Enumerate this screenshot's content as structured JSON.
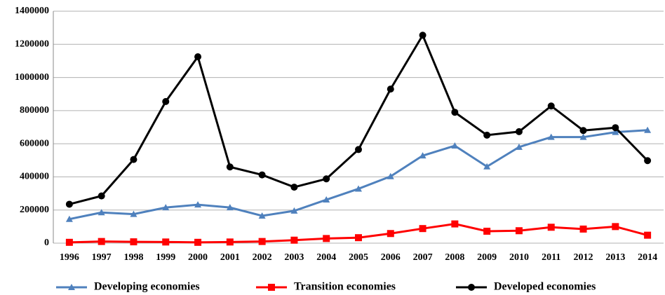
{
  "chart_data": {
    "type": "line",
    "categories": [
      "1996",
      "1997",
      "1998",
      "1999",
      "2000",
      "2001",
      "2002",
      "2003",
      "2004",
      "2005",
      "2006",
      "2007",
      "2008",
      "2009",
      "2010",
      "2011",
      "2012",
      "2013",
      "2014"
    ],
    "series": [
      {
        "name": "Developing economies",
        "color": "#4f81bd",
        "marker": "triangle",
        "values": [
          145000,
          185000,
          175000,
          215000,
          232000,
          215000,
          165000,
          195000,
          262000,
          328000,
          403000,
          528000,
          588000,
          462000,
          580000,
          640000,
          640000,
          670000,
          682000
        ]
      },
      {
        "name": "Transition economies",
        "color": "#ff0000",
        "marker": "square",
        "values": [
          5000,
          10000,
          8000,
          7000,
          5000,
          7000,
          10000,
          18000,
          28000,
          33000,
          58000,
          88000,
          116000,
          72000,
          75000,
          96000,
          85000,
          100000,
          48000
        ]
      },
      {
        "name": "Developed economies",
        "color": "#000000",
        "marker": "circle",
        "values": [
          235000,
          285000,
          505000,
          855000,
          1125000,
          460000,
          412000,
          338000,
          388000,
          565000,
          930000,
          1255000,
          790000,
          652000,
          673000,
          828000,
          680000,
          697000,
          498000
        ]
      }
    ],
    "ylim": [
      0,
      1400000
    ],
    "yticks": [
      0,
      200000,
      400000,
      600000,
      800000,
      1000000,
      1200000,
      1400000
    ],
    "grid": true,
    "legend": "bottom"
  }
}
